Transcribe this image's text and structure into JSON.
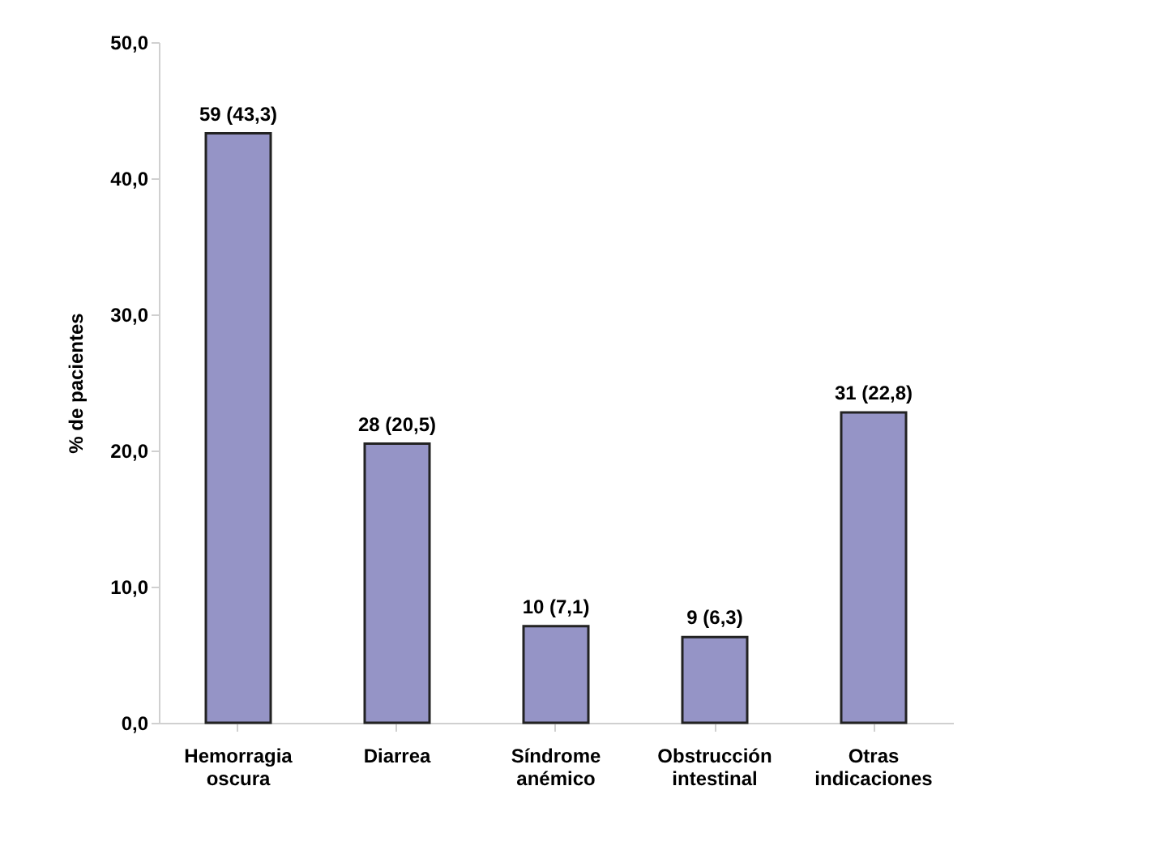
{
  "chart_data": {
    "type": "bar",
    "ylabel": "% de pacientes",
    "categories": [
      "Hemorragia oscura",
      "Diarrea",
      "Síndrome anémico",
      "Obstrucción intestinal",
      "Otras indicaciones"
    ],
    "values": [
      43.3,
      20.5,
      7.1,
      6.3,
      22.8
    ],
    "value_labels": [
      "59 (43,3)",
      "28 (20,5)",
      "10 (7,1)",
      "9 (6,3)",
      "31 (22,8)"
    ],
    "color": "#9594c6",
    "ylim": [
      0,
      50
    ],
    "yticks": [
      {
        "value": 0,
        "label": "0,0"
      },
      {
        "value": 10,
        "label": "10,0"
      },
      {
        "value": 20,
        "label": "20,0"
      },
      {
        "value": 30,
        "label": "30,0"
      },
      {
        "value": 40,
        "label": "40,0"
      },
      {
        "value": 50,
        "label": "50,0"
      }
    ],
    "grid": false
  }
}
